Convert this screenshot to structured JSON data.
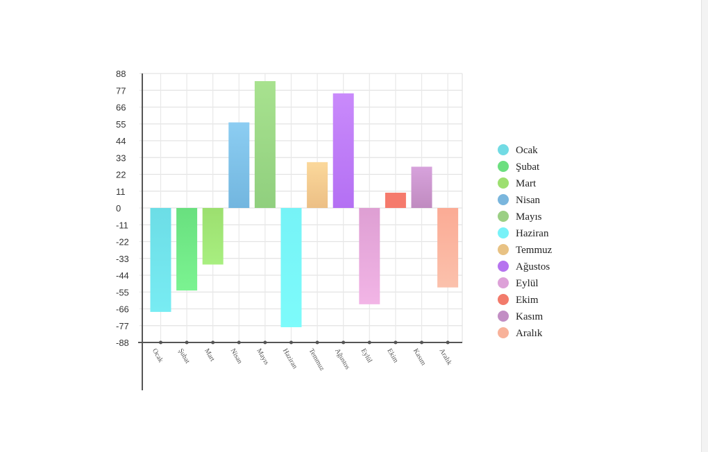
{
  "chart_data": {
    "type": "bar",
    "categories": [
      "Ocak",
      "Şubat",
      "Mart",
      "Nisan",
      "Mayıs",
      "Haziran",
      "Temmuz",
      "Ağustos",
      "Eylül",
      "Ekim",
      "Kasım",
      "Aralık"
    ],
    "values": [
      -68,
      -54,
      -37,
      56,
      83,
      -78,
      30,
      75,
      -63,
      10,
      27,
      -52
    ],
    "ylim": [
      -88,
      88
    ],
    "yticks": [
      "88",
      "77",
      "66",
      "55",
      "44",
      "33",
      "22",
      "11",
      "0",
      "-11",
      "-22",
      "-33",
      "-44",
      "-55",
      "-66",
      "-77",
      "-88"
    ],
    "grid": true,
    "legend_position": "right",
    "colors_top": [
      "#6cdde6",
      "#69e07f",
      "#9cdf6f",
      "#8ccdf2",
      "#a8e28f",
      "#76f3f7",
      "#fbd89b",
      "#c98afb",
      "#de9fd3",
      "#f57a6c",
      "#d7a2dc",
      "#fbab95"
    ],
    "colors_bottom": [
      "#78ecf3",
      "#7bf391",
      "#a8ef80",
      "#72b6df",
      "#90cf7e",
      "#7dfbfb",
      "#ecbf85",
      "#b470f3",
      "#f2b5e6",
      "#f57a6c",
      "#c08bc0",
      "#fbc1ac"
    ],
    "legend_colors": [
      "#72dbe4",
      "#6cdf7f",
      "#9ddf70",
      "#7ab6dd",
      "#9bcf84",
      "#78f2f8",
      "#e8c284",
      "#b674ef",
      "#dda1d8",
      "#f27b6b",
      "#c28ec4",
      "#f8b29a"
    ]
  }
}
